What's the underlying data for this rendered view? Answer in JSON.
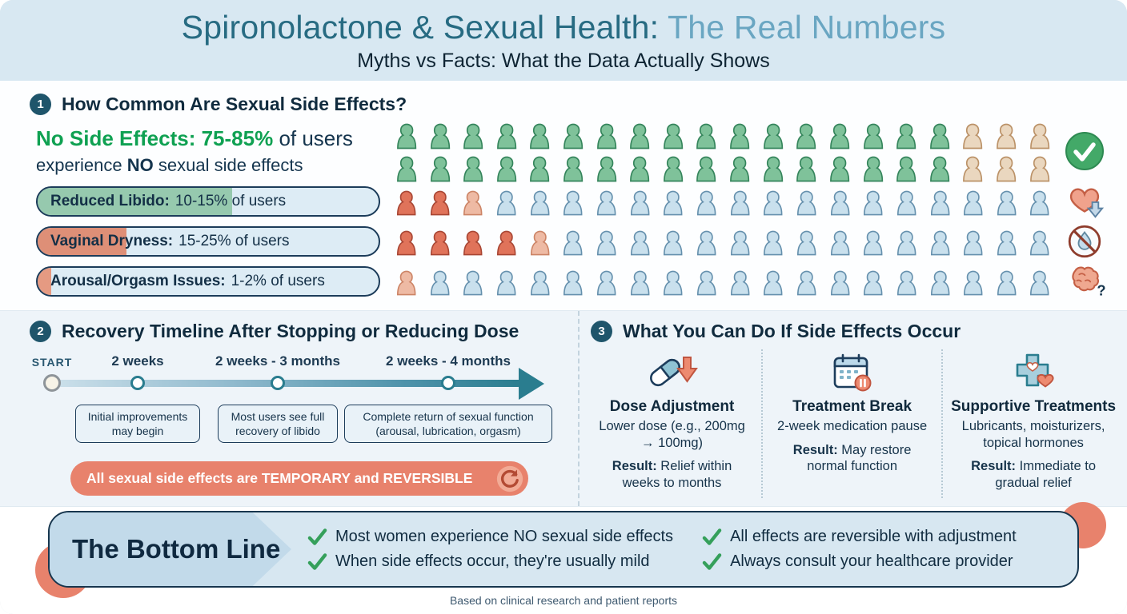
{
  "meta": {
    "title_main": "Spironolactone & Sexual Health:",
    "title_accent": " The Real Numbers",
    "subtitle": "Myths vs Facts: What the Data Actually Shows",
    "footer": "Based on clinical research and patient reports"
  },
  "colors": {
    "header_bg": "#d8e8f2",
    "title_teal": "#276b82",
    "title_light_blue": "#6aa6c2",
    "positive_green": "#0fa152",
    "salmon_accent": "#e8826c",
    "navy_text": "#17364e",
    "icon_green": "#7fc29a",
    "icon_tan": "#ead7bf",
    "icon_blue": "#c9e0ed",
    "icon_red": "#e0735a",
    "timeline_teal": "#2a7d8f"
  },
  "section1": {
    "badge": "1",
    "heading": "How Common Are Sexual Side Effects?",
    "no_side": {
      "strong": "No Side Effects: 75-85%",
      "after": " of users",
      "line2a": "experience ",
      "line2b": "NO",
      "line2c": " sexual side effects",
      "rows": [
        [
          "g",
          "g",
          "g",
          "g",
          "g",
          "g",
          "g",
          "g",
          "g",
          "g",
          "g",
          "g",
          "g",
          "g",
          "g",
          "g",
          "g",
          "t",
          "t",
          "t"
        ],
        [
          "g",
          "g",
          "g",
          "g",
          "g",
          "g",
          "g",
          "g",
          "g",
          "g",
          "g",
          "g",
          "g",
          "g",
          "g",
          "g",
          "g",
          "t",
          "t",
          "t"
        ]
      ]
    },
    "stats": [
      {
        "name": "Reduced Libido:",
        "value": "10-15% of users",
        "fill_pct": 57,
        "fill_color": "#96c9ae",
        "icons": [
          "r",
          "r",
          "rl",
          "b",
          "b",
          "b",
          "b",
          "b",
          "b",
          "b",
          "b",
          "b",
          "b",
          "b",
          "b",
          "b",
          "b",
          "b",
          "b",
          "b"
        ],
        "side_icon": "heart-down-arrow-icon"
      },
      {
        "name": "Vaginal Dryness:",
        "value": "15-25% of users",
        "fill_pct": 26,
        "fill_color": "#de8f77",
        "icons": [
          "r",
          "r",
          "r",
          "r",
          "rl",
          "b",
          "b",
          "b",
          "b",
          "b",
          "b",
          "b",
          "b",
          "b",
          "b",
          "b",
          "b",
          "b",
          "b",
          "b"
        ],
        "side_icon": "droplet-crossed-icon"
      },
      {
        "name": "Arousal/Orgasm Issues:",
        "value": "1-2% of users",
        "fill_pct": 4,
        "fill_color": "#e59a82",
        "icons": [
          "rl",
          "b",
          "b",
          "b",
          "b",
          "b",
          "b",
          "b",
          "b",
          "b",
          "b",
          "b",
          "b",
          "b",
          "b",
          "b",
          "b",
          "b",
          "b",
          "b"
        ],
        "side_icon": "brain-question-icon"
      }
    ],
    "no_side_icon": "check-circle-icon"
  },
  "section2": {
    "badge": "2",
    "heading": "Recovery Timeline After Stopping or Reducing Dose",
    "start_label": "START",
    "milestones": [
      {
        "time": "2 weeks",
        "note": "Initial improvements may begin"
      },
      {
        "time": "2 weeks - 3 months",
        "note": "Most users see full recovery of libido"
      },
      {
        "time": "2 weeks - 4 months",
        "note": "Complete return of sexual function (arousal, lubrication, orgasm)"
      }
    ],
    "banner": "All sexual side effects are TEMPORARY and REVERSIBLE",
    "banner_icon": "refresh-cycle-icon"
  },
  "section3": {
    "badge": "3",
    "heading": "What You Can Do If Side Effects Occur",
    "options": [
      {
        "icon": "pill-down-arrow-icon",
        "title": "Dose Adjustment",
        "desc": "Lower dose (e.g., 200mg → 100mg)",
        "result_label": "Result:",
        "result_text": " Relief within weeks to months"
      },
      {
        "icon": "calendar-pause-icon",
        "title": "Treatment Break",
        "desc": "2-week medication pause",
        "result_label": "Result:",
        "result_text": " May restore normal function"
      },
      {
        "icon": "medical-cross-hearts-icon",
        "title": "Supportive Treatments",
        "desc": "Lubricants, moisturizers, topical hormones",
        "result_label": "Result:",
        "result_text": " Immediate to gradual relief"
      }
    ]
  },
  "bottom": {
    "title": "The Bottom Line",
    "points": [
      "Most women experience NO sexual side effects",
      "When side effects occur, they're usually mild",
      "All effects are reversible with adjustment",
      "Always consult your healthcare provider"
    ]
  },
  "chart_data": {
    "type": "pictogram",
    "title": "How Common Are Sexual Side Effects?",
    "series": [
      {
        "label": "No Side Effects",
        "range_pct": [
          75,
          85
        ],
        "icons_total": 40,
        "icons_highlighted": 34,
        "note": "experience NO sexual side effects"
      },
      {
        "label": "Reduced Libido",
        "range_pct": [
          10,
          15
        ],
        "icons_total": 20,
        "icons_highlighted": 3
      },
      {
        "label": "Vaginal Dryness",
        "range_pct": [
          15,
          25
        ],
        "icons_total": 20,
        "icons_highlighted": 5
      },
      {
        "label": "Arousal/Orgasm Issues",
        "range_pct": [
          1,
          2
        ],
        "icons_total": 20,
        "icons_highlighted": 1
      }
    ],
    "timeline": [
      {
        "milestone": "2 weeks",
        "event": "Initial improvements may begin"
      },
      {
        "milestone": "2 weeks - 3 months",
        "event": "Most users see full recovery of libido"
      },
      {
        "milestone": "2 weeks - 4 months",
        "event": "Complete return of sexual function (arousal, lubrication, orgasm)"
      }
    ]
  }
}
